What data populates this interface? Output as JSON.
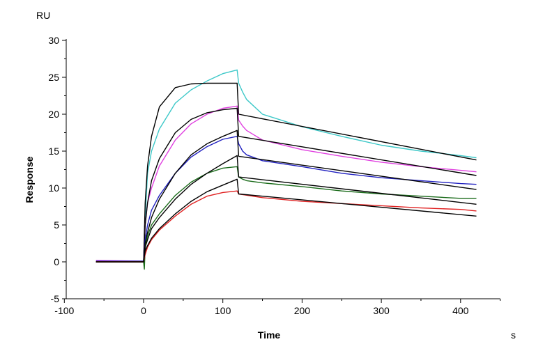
{
  "chart_data": {
    "type": "line",
    "title": "",
    "xlabel": "Time",
    "ylabel": "Response",
    "y_unit": "RU",
    "x_unit": "s",
    "xlim": [
      -100,
      450
    ],
    "ylim": [
      -5,
      30
    ],
    "x_ticks": [
      -100,
      0,
      100,
      200,
      300,
      400
    ],
    "y_ticks": [
      -5,
      0,
      5,
      10,
      15,
      20,
      25,
      30
    ],
    "grid": false,
    "legend": "none",
    "series": [
      {
        "color": "#3cc8c8",
        "kind": "measured",
        "x": [
          -60,
          -1,
          0,
          2,
          5,
          10,
          20,
          40,
          60,
          80,
          100,
          118,
          120,
          125,
          130,
          150,
          200,
          250,
          300,
          350,
          400,
          420
        ],
        "y": [
          0,
          0,
          0,
          6,
          12,
          15,
          18,
          21.5,
          23.3,
          24.5,
          25.5,
          26,
          24.2,
          23,
          22,
          20,
          18.3,
          17,
          15.8,
          15,
          14.4,
          14.1
        ]
      },
      {
        "color": "#000000",
        "kind": "fit",
        "x": [
          -60,
          0,
          2,
          5,
          10,
          20,
          40,
          60,
          80,
          100,
          118,
          120,
          420
        ],
        "y": [
          0,
          0,
          8,
          13,
          17,
          21,
          23.6,
          24.1,
          24.2,
          24.2,
          24.2,
          20,
          13.8
        ]
      },
      {
        "color": "#e040e0",
        "kind": "measured",
        "x": [
          -60,
          -1,
          0,
          2,
          5,
          10,
          20,
          40,
          60,
          80,
          100,
          118,
          120,
          125,
          130,
          150,
          200,
          250,
          300,
          350,
          400,
          420
        ],
        "y": [
          0.2,
          0.1,
          0,
          5,
          8,
          10,
          13,
          16.5,
          18.7,
          20,
          20.8,
          21.1,
          19.2,
          18.4,
          17.8,
          16.5,
          15.2,
          14.3,
          13.5,
          12.9,
          12.4,
          12.2
        ]
      },
      {
        "color": "#000000",
        "kind": "fit",
        "x": [
          -60,
          0,
          2,
          5,
          10,
          20,
          40,
          60,
          80,
          100,
          118,
          120,
          420
        ],
        "y": [
          0,
          0,
          5,
          8,
          11,
          14,
          17.5,
          19.3,
          20.2,
          20.6,
          20.8,
          17,
          11.7
        ]
      },
      {
        "color": "#2020c0",
        "kind": "measured",
        "x": [
          -60,
          -1,
          0,
          2,
          5,
          10,
          20,
          40,
          60,
          80,
          100,
          118,
          120,
          125,
          130,
          150,
          200,
          250,
          300,
          350,
          400,
          420
        ],
        "y": [
          0.1,
          0.1,
          0,
          3,
          5,
          7,
          9,
          12,
          14.2,
          15.6,
          16.6,
          17,
          16,
          15,
          14.5,
          13.7,
          12.9,
          12,
          11.4,
          11,
          10.6,
          10.5
        ]
      },
      {
        "color": "#000000",
        "kind": "fit",
        "x": [
          -60,
          0,
          2,
          5,
          10,
          20,
          40,
          60,
          80,
          100,
          118,
          120,
          420
        ],
        "y": [
          0,
          0,
          2.5,
          4,
          6,
          8.5,
          12,
          14.5,
          16,
          17,
          17.8,
          14.3,
          9.8
        ]
      },
      {
        "color": "#1a6b1a",
        "kind": "measured",
        "x": [
          -60,
          -1,
          0,
          1,
          2,
          5,
          10,
          20,
          40,
          60,
          80,
          100,
          118,
          120,
          125,
          130,
          150,
          200,
          250,
          300,
          350,
          400,
          420
        ],
        "y": [
          0,
          0,
          0,
          -1,
          2,
          3.5,
          5,
          6.5,
          9,
          10.8,
          12,
          12.7,
          12.9,
          11.5,
          11.2,
          11,
          10.7,
          10.2,
          9.6,
          9.2,
          8.9,
          8.6,
          8.6
        ]
      },
      {
        "color": "#000000",
        "kind": "fit",
        "x": [
          -60,
          0,
          2,
          5,
          10,
          20,
          40,
          60,
          80,
          100,
          118,
          120,
          420
        ],
        "y": [
          0,
          0,
          2,
          3,
          4.5,
          6,
          8.5,
          10.5,
          12,
          13.3,
          14.4,
          11.5,
          7.8
        ]
      },
      {
        "color": "#e02020",
        "kind": "measured",
        "x": [
          -60,
          -1,
          0,
          2,
          5,
          10,
          20,
          40,
          60,
          80,
          100,
          118,
          120,
          150,
          200,
          250,
          300,
          350,
          400,
          420
        ],
        "y": [
          0,
          0,
          0,
          1,
          2,
          3,
          4.3,
          6.2,
          7.8,
          8.9,
          9.4,
          9.6,
          9.2,
          8.7,
          8.2,
          7.9,
          7.6,
          7.3,
          7.1,
          6.9
        ]
      },
      {
        "color": "#000000",
        "kind": "fit",
        "x": [
          -60,
          0,
          2,
          5,
          10,
          20,
          40,
          60,
          80,
          100,
          118,
          120,
          420
        ],
        "y": [
          0,
          0,
          1.5,
          2.2,
          3.2,
          4.5,
          6.5,
          8.2,
          9.5,
          10.4,
          11.2,
          9.2,
          6.2
        ]
      }
    ]
  }
}
